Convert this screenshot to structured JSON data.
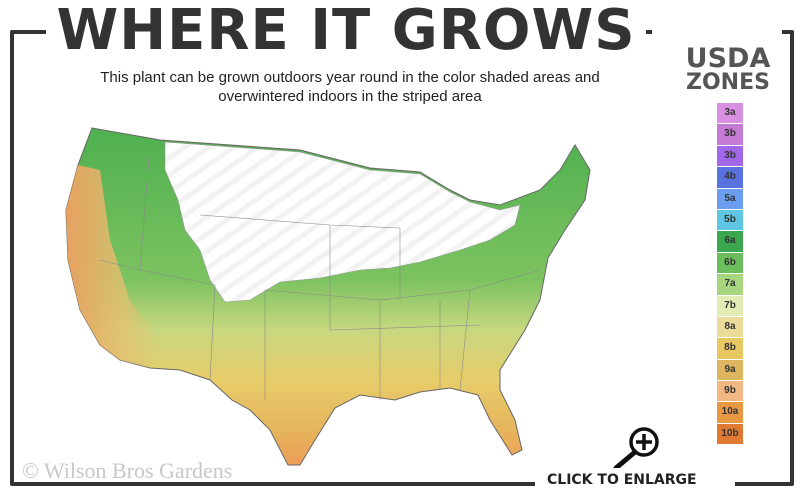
{
  "title": "WHERE IT GROWS",
  "subtitle": "This plant can be grown outdoors year round in the color shaded areas and overwintered indoors in the striped area",
  "legend": {
    "title_line1": "USDA",
    "title_line2": "ZONES",
    "zones": [
      {
        "label": "3a",
        "color": "#d990e0"
      },
      {
        "label": "3b",
        "color": "#c57ad6"
      },
      {
        "label": "3b",
        "color": "#a268ea"
      },
      {
        "label": "4b",
        "color": "#5a72e0"
      },
      {
        "label": "5a",
        "color": "#6c9ef0"
      },
      {
        "label": "5b",
        "color": "#5ec6e2"
      },
      {
        "label": "6a",
        "color": "#3aa650"
      },
      {
        "label": "6b",
        "color": "#6cbe5c"
      },
      {
        "label": "7a",
        "color": "#a8d67e"
      },
      {
        "label": "7b",
        "color": "#e2ecb4"
      },
      {
        "label": "8a",
        "color": "#ecdc9a"
      },
      {
        "label": "8b",
        "color": "#e8c862"
      },
      {
        "label": "9a",
        "color": "#dfb660"
      },
      {
        "label": "9b",
        "color": "#f2b884"
      },
      {
        "label": "10a",
        "color": "#e89842"
      },
      {
        "label": "10b",
        "color": "#e07a32"
      }
    ]
  },
  "copyright": "© Wilson Bros Gardens",
  "enlarge": {
    "label": "CLICK TO ENLARGE",
    "icon": "zoom-in-icon"
  }
}
